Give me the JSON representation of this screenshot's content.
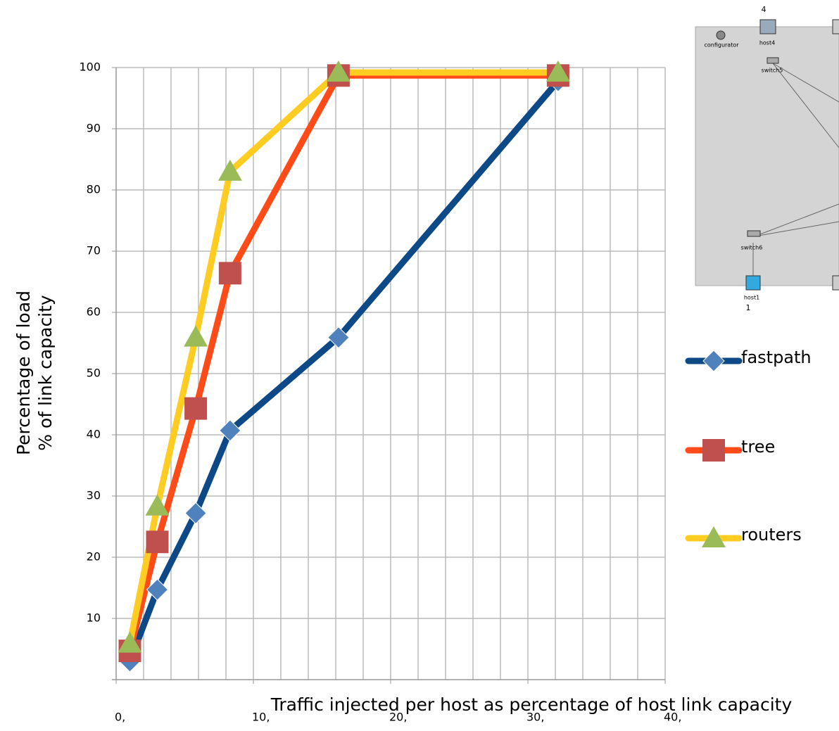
{
  "chart_data": {
    "type": "line",
    "y_label": [
      "Percentage of load",
      "% of link capacity"
    ],
    "x_label": "Traffic injected per host as percentage of host link capacity",
    "xlim": [
      0,
      40
    ],
    "ylim": [
      0,
      100
    ],
    "xticks": [
      {
        "value": 0,
        "label": "0,"
      },
      {
        "value": 10,
        "label": "10,"
      },
      {
        "value": 20,
        "label": "20,"
      },
      {
        "value": 30,
        "label": "30,"
      },
      {
        "value": 40,
        "label": "40,"
      }
    ],
    "yticks": [
      10,
      20,
      30,
      40,
      50,
      60,
      70,
      80,
      90,
      100
    ],
    "x_minor_grid_step": 2,
    "grid": true,
    "x": [
      1,
      3,
      5.8,
      8.3,
      16.2,
      32.2
    ],
    "series": [
      {
        "name": "fastpath",
        "color": "#0d4887",
        "marker": "diamond",
        "marker_color": "#4f81bd",
        "values": [
          3,
          14.7,
          27.2,
          40.7,
          55.9,
          97.8
        ]
      },
      {
        "name": "tree",
        "color": "#ff4b17",
        "marker": "square",
        "marker_color": "#c0504d",
        "values": [
          4.7,
          22.5,
          44.3,
          66.4,
          98.7,
          98.7
        ]
      },
      {
        "name": "routers",
        "color": "#ffcc22",
        "marker": "triangle",
        "marker_color": "#9bbb59",
        "values": [
          5.9,
          28.3,
          55.9,
          83,
          99.2,
          99.2
        ]
      }
    ]
  },
  "inset": {
    "top_number": "4",
    "bottom_number": "1",
    "configurator": "configurator",
    "host4": "host4",
    "switch5": "switch5",
    "switch6": "switch6",
    "host1": "host1"
  }
}
